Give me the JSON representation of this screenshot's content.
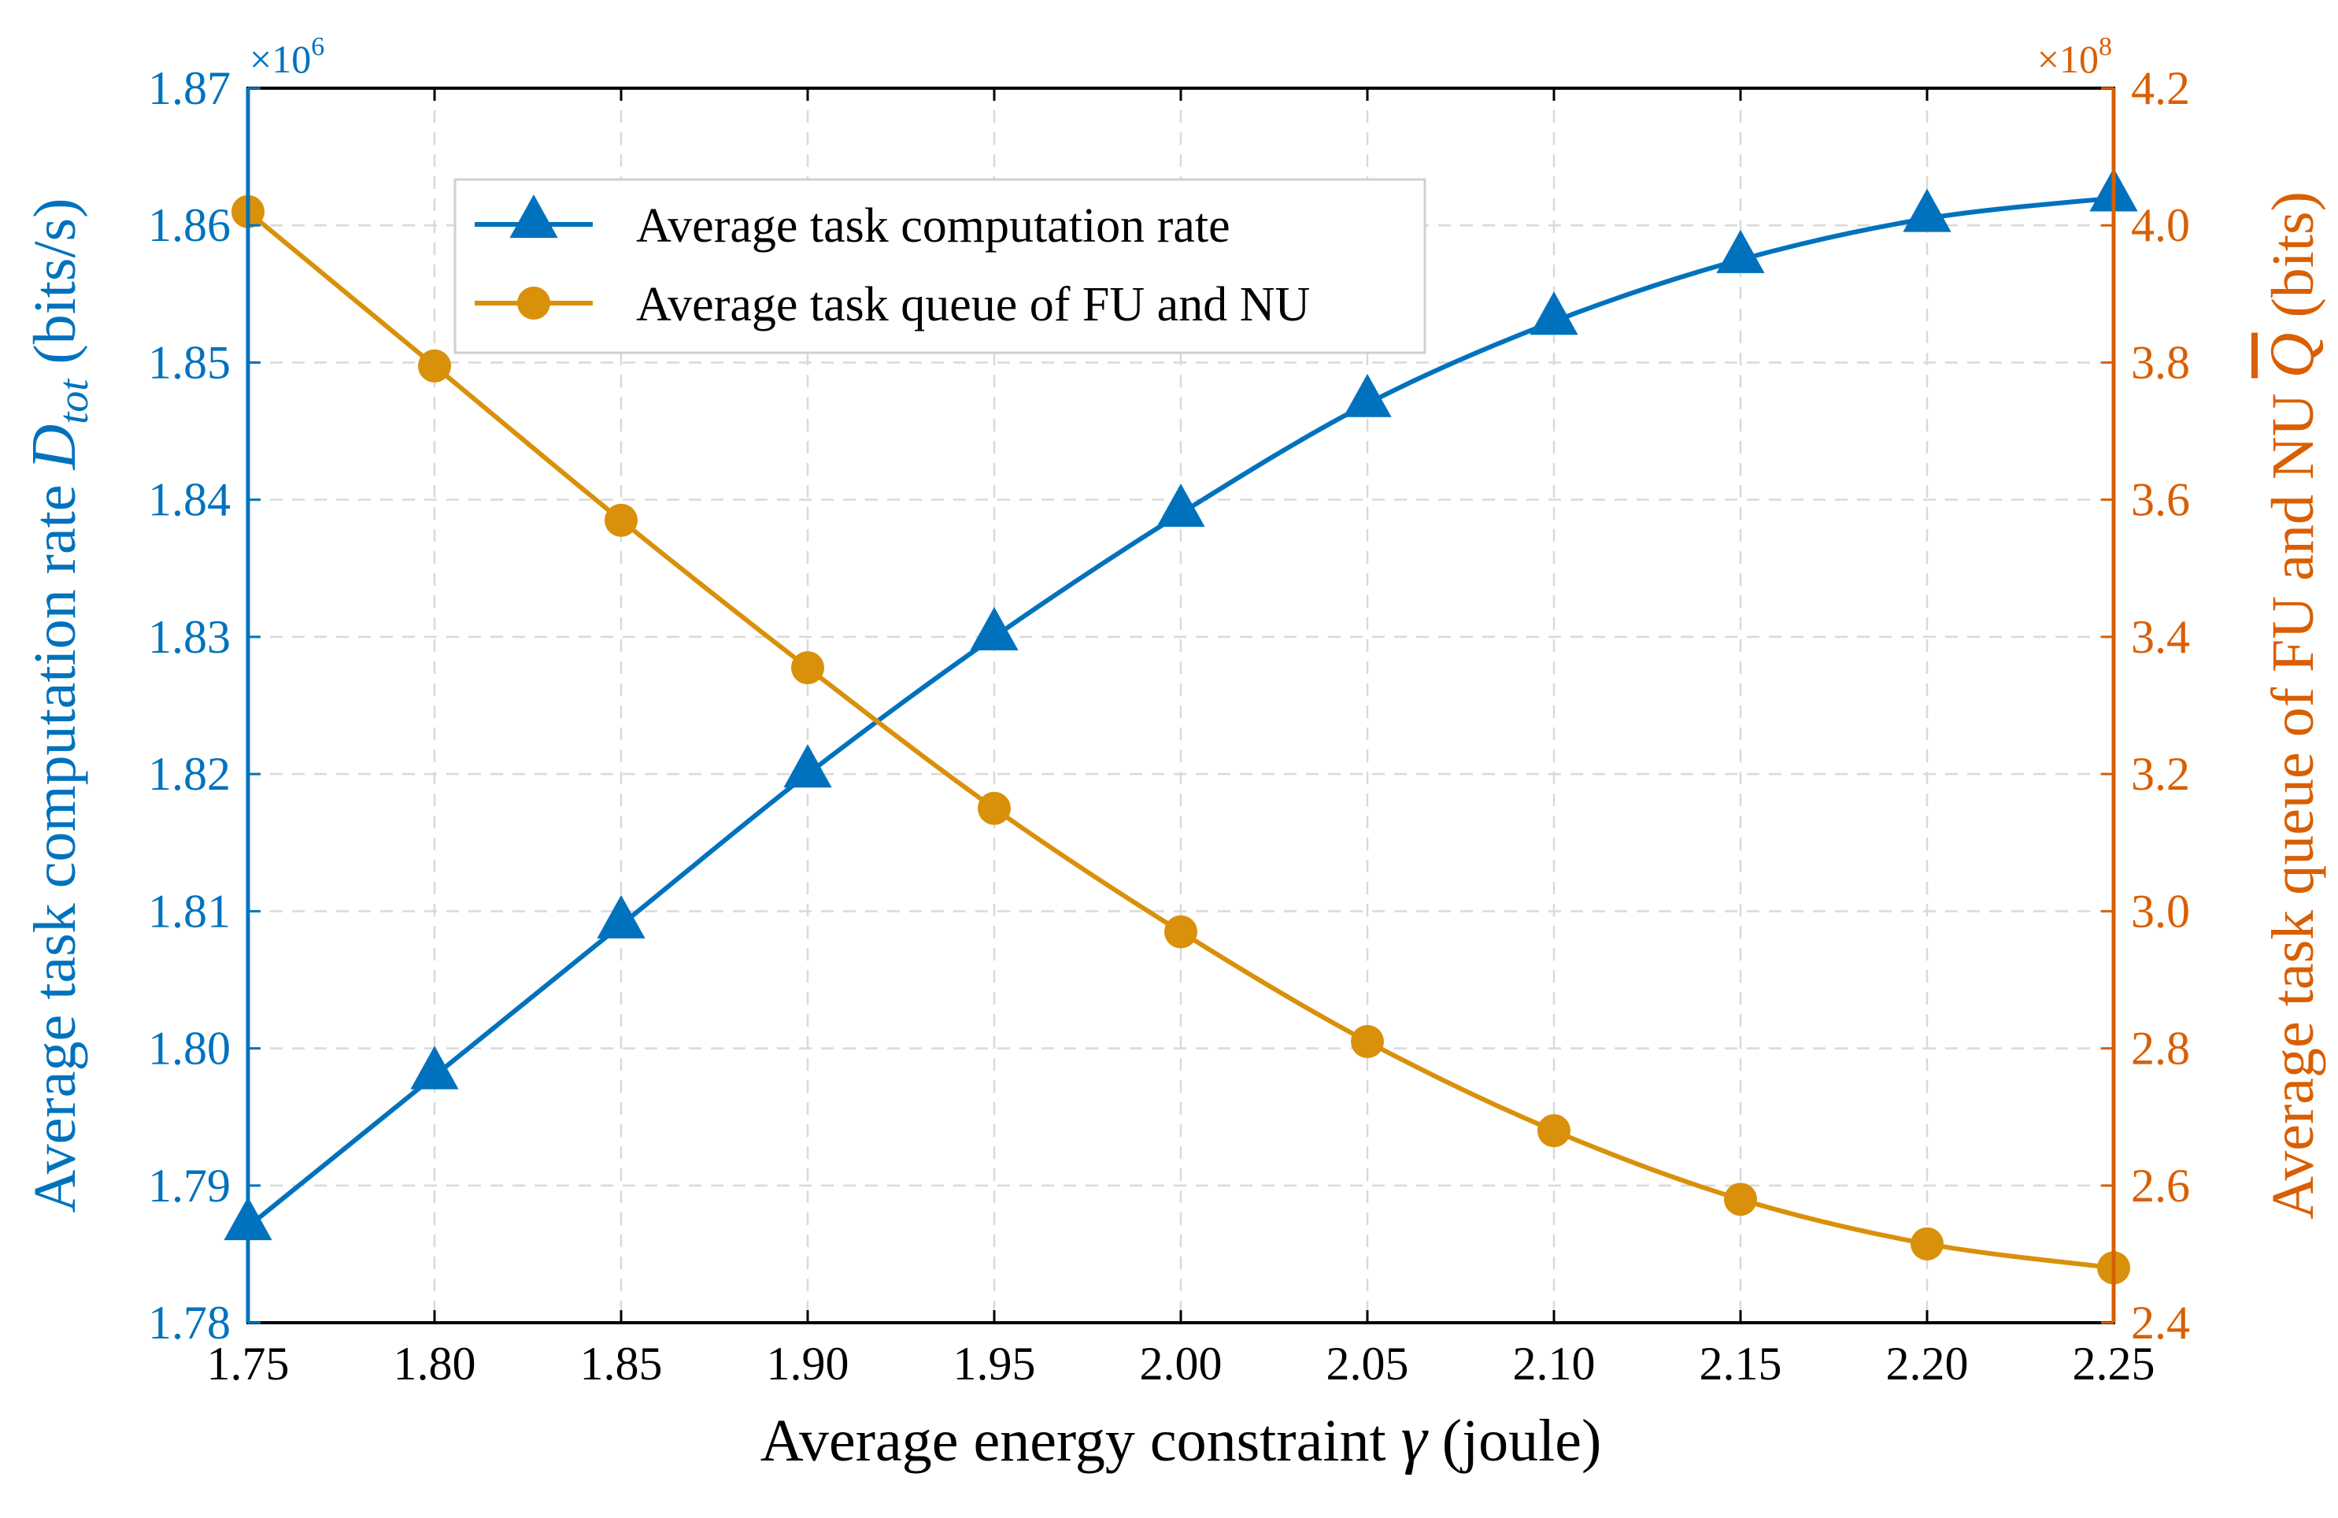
{
  "chart_data": {
    "type": "line",
    "x": [
      1.75,
      1.8,
      1.85,
      1.9,
      1.95,
      2.0,
      2.05,
      2.1,
      2.15,
      2.2,
      2.25
    ],
    "x_tick_labels": [
      "1.75",
      "1.80",
      "1.85",
      "1.90",
      "1.95",
      "2.00",
      "2.05",
      "2.10",
      "2.15",
      "2.20",
      "2.25"
    ],
    "xlabel": "Average energy constraint",
    "xlabel_symbol": "γ",
    "xlabel_unit": "(joule)",
    "xlim": [
      1.75,
      2.25
    ],
    "grid": true,
    "legend_position": "top-left",
    "y_left": {
      "label": "Average task computation rate",
      "label_symbol": "D",
      "label_subscript": "tot",
      "label_unit": "(bits/s)",
      "multiplier": "×10",
      "multiplier_exp": "6",
      "ylim": [
        1.78,
        1.87
      ],
      "ticks": [
        1.78,
        1.79,
        1.8,
        1.81,
        1.82,
        1.83,
        1.84,
        1.85,
        1.86,
        1.87
      ],
      "tick_labels": [
        "1.78",
        "1.79",
        "1.80",
        "1.81",
        "1.82",
        "1.83",
        "1.84",
        "1.85",
        "1.86",
        "1.87"
      ],
      "color": "#0072BD"
    },
    "y_right": {
      "label": "Average task queue of FU and NU",
      "label_symbol": "Q",
      "label_unit": "(bits)",
      "multiplier": "×10",
      "multiplier_exp": "8",
      "ylim": [
        2.4,
        4.2
      ],
      "ticks": [
        2.4,
        2.6,
        2.8,
        3.0,
        3.2,
        3.4,
        3.6,
        3.8,
        4.0,
        4.2
      ],
      "tick_labels": [
        "2.4",
        "2.6",
        "2.8",
        "3.0",
        "3.2",
        "3.4",
        "3.6",
        "3.8",
        "4.0",
        "4.2"
      ],
      "color": "#D95F02"
    },
    "series": [
      {
        "name": "Average task computation rate",
        "axis": "left",
        "marker": "triangle",
        "color": "#0072BD",
        "values": [
          1.787,
          1.798,
          1.809,
          1.82,
          1.83,
          1.839,
          1.847,
          1.853,
          1.8575,
          1.8605,
          1.862
        ]
      },
      {
        "name": "Average task queue of FU and NU",
        "axis": "right",
        "marker": "circle",
        "color": "#D9900A",
        "values": [
          4.02,
          3.795,
          3.57,
          3.355,
          3.15,
          2.97,
          2.81,
          2.68,
          2.58,
          2.515,
          2.48
        ]
      }
    ]
  }
}
